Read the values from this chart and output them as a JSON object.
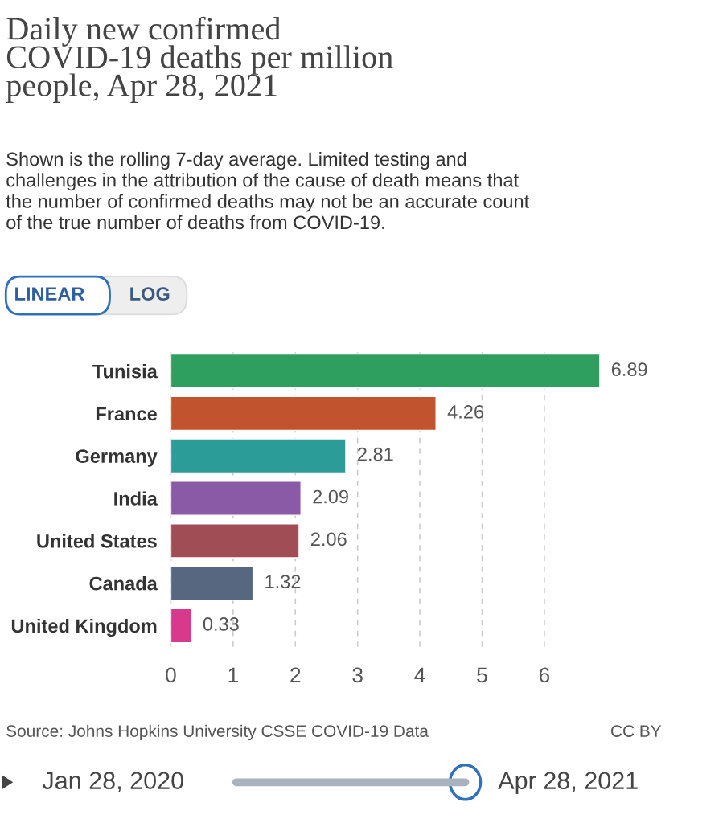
{
  "chart_data": {
    "type": "bar",
    "orientation": "horizontal",
    "title": "Daily new confirmed\nCOVID-19 deaths per million\npeople, Apr 28, 2021",
    "subtitle": "Shown is the rolling 7-day average. Limited testing and\nchallenges in the attribution of the cause of death means that\nthe number of confirmed deaths may not be an accurate count\nof the true number of deaths from COVID-19.",
    "categories": [
      "Tunisia",
      "France",
      "Germany",
      "India",
      "United States",
      "Canada",
      "United Kingdom"
    ],
    "values": [
      6.89,
      4.26,
      2.81,
      2.09,
      2.06,
      1.32,
      0.33
    ],
    "colors": [
      "#2e9f5f",
      "#c1542e",
      "#2b9c98",
      "#8b5aa6",
      "#a14d56",
      "#56677f",
      "#d73a8c"
    ],
    "xlim": [
      0,
      6.89
    ],
    "xticks": [
      0,
      1,
      2,
      3,
      4,
      5,
      6
    ],
    "grid": "x",
    "data_labels": true,
    "legend": false,
    "annotations": [
      "LINEAR",
      "LOG",
      "Source: Johns Hopkins University CSSE COVID-19 Data",
      "CC BY",
      "Jan 28, 2020",
      "Apr 28, 2021"
    ]
  }
}
